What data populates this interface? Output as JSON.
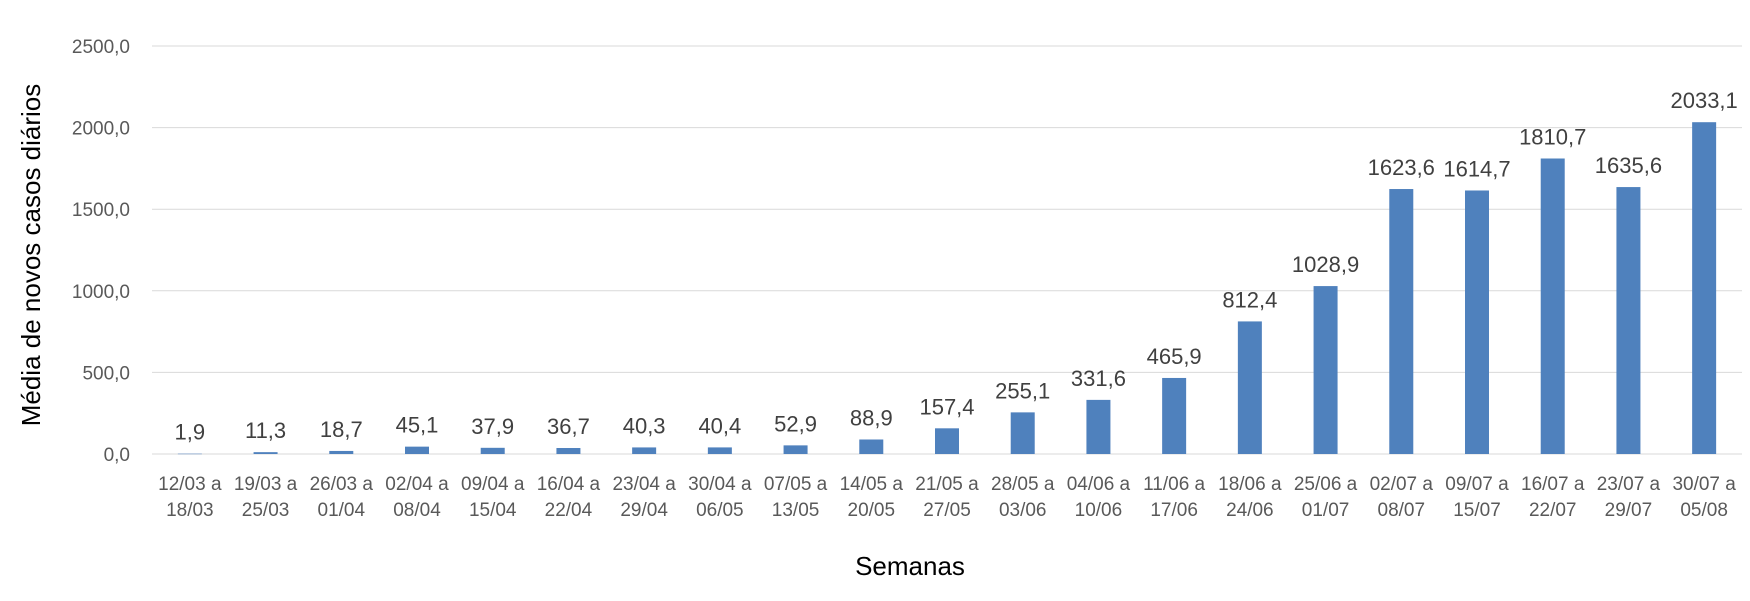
{
  "chart_data": {
    "type": "bar",
    "title": "",
    "xlabel": "Semanas",
    "ylabel": "Média de novos casos diários",
    "ylim": [
      0,
      2500
    ],
    "yticks": [
      "0,0",
      "500,0",
      "1000,0",
      "1500,0",
      "2000,0",
      "2500,0"
    ],
    "grid": true,
    "bar_color": "#4f81bd",
    "categories": [
      [
        "12/03 a",
        "18/03"
      ],
      [
        "19/03 a",
        "25/03"
      ],
      [
        "26/03 a",
        "01/04"
      ],
      [
        "02/04 a",
        "08/04"
      ],
      [
        "09/04 a",
        "15/04"
      ],
      [
        "16/04 a",
        "22/04"
      ],
      [
        "23/04 a",
        "29/04"
      ],
      [
        "30/04 a",
        "06/05"
      ],
      [
        "07/05 a",
        "13/05"
      ],
      [
        "14/05 a",
        "20/05"
      ],
      [
        "21/05 a",
        "27/05"
      ],
      [
        "28/05 a",
        "03/06"
      ],
      [
        "04/06 a",
        "10/06"
      ],
      [
        "11/06 a",
        "17/06"
      ],
      [
        "18/06 a",
        "24/06"
      ],
      [
        "25/06 a",
        "01/07"
      ],
      [
        "02/07 a",
        "08/07"
      ],
      [
        "09/07 a",
        "15/07"
      ],
      [
        "16/07 a",
        "22/07"
      ],
      [
        "23/07 a",
        "29/07"
      ],
      [
        "30/07 a",
        "05/08"
      ]
    ],
    "values": [
      1.9,
      11.3,
      18.7,
      45.1,
      37.9,
      36.7,
      40.3,
      40.4,
      52.9,
      88.9,
      157.4,
      255.1,
      331.6,
      465.9,
      812.4,
      1028.9,
      1623.6,
      1614.7,
      1810.7,
      1635.6,
      2033.1
    ],
    "data_labels": [
      "1,9",
      "11,3",
      "18,7",
      "45,1",
      "37,9",
      "36,7",
      "40,3",
      "40,4",
      "52,9",
      "88,9",
      "157,4",
      "255,1",
      "331,6",
      "465,9",
      "812,4",
      "1028,9",
      "1623,6",
      "1614,7",
      "1810,7",
      "1635,6",
      "2033,1"
    ]
  }
}
